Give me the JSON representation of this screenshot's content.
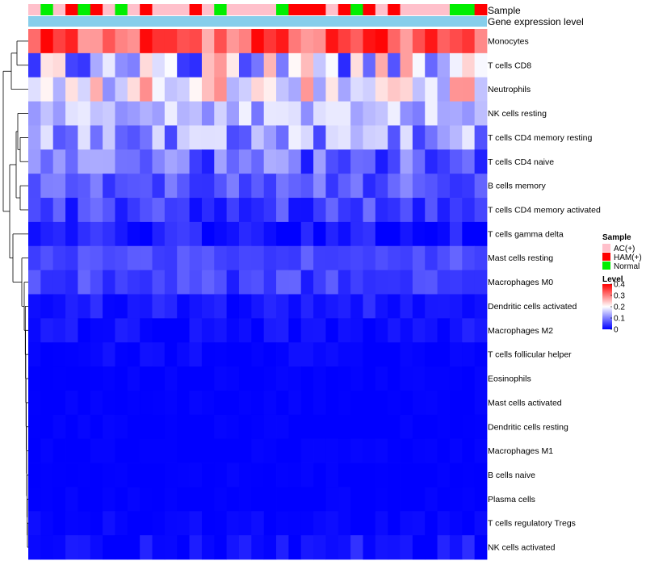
{
  "chart_data": {
    "type": "heatmap",
    "title": "",
    "annotations": {
      "sample_label": "Sample",
      "gene_label": "Gene expression level",
      "gene_color": "#87CEEB"
    },
    "sample_groups": [
      "AC",
      "N",
      "AC",
      "H",
      "N",
      "H",
      "AC",
      "N",
      "AC",
      "H",
      "AC",
      "AC",
      "AC",
      "H",
      "AC",
      "N",
      "AC",
      "AC",
      "AC",
      "AC",
      "N",
      "H",
      "H",
      "H",
      "AC",
      "H",
      "N",
      "H",
      "AC",
      "H",
      "AC",
      "AC",
      "AC",
      "AC",
      "N",
      "N",
      "H"
    ],
    "rows": [
      "Monocytes",
      "T cells CD8",
      "Neutrophils",
      "NK cells resting",
      "T cells CD4 memory resting",
      "T cells CD4 naive",
      "B cells memory",
      "T cells CD4 memory activated",
      "T cells gamma delta",
      "Mast cells resting",
      "Macrophages M0",
      "Dendritic cells activated",
      "Macrophages M2",
      "T cells follicular helper",
      "Eosinophils",
      "Mast cells activated",
      "Dendritic cells resting",
      "Macrophages M1",
      "B cells naive",
      "Plasma cells",
      "T cells regulatory  Tregs",
      "NK cells activated"
    ],
    "row_profiles": [
      {
        "base": 0.33,
        "var": 0.07
      },
      {
        "base": 0.16,
        "var": 0.13
      },
      {
        "base": 0.2,
        "var": 0.09
      },
      {
        "base": 0.14,
        "var": 0.05
      },
      {
        "base": 0.12,
        "var": 0.07
      },
      {
        "base": 0.08,
        "var": 0.06
      },
      {
        "base": 0.07,
        "var": 0.04
      },
      {
        "base": 0.05,
        "var": 0.04
      },
      {
        "base": 0.01,
        "var": 0.04
      },
      {
        "base": 0.06,
        "var": 0.02
      },
      {
        "base": 0.05,
        "var": 0.03
      },
      {
        "base": 0.02,
        "var": 0.02
      },
      {
        "base": 0.01,
        "var": 0.02
      },
      {
        "base": 0.005,
        "var": 0.01
      },
      {
        "base": 0.0,
        "var": 0.005
      },
      {
        "base": 0.0,
        "var": 0.005
      },
      {
        "base": 0.0,
        "var": 0.005
      },
      {
        "base": 0.0,
        "var": 0.005
      },
      {
        "base": 0.0,
        "var": 0.005
      },
      {
        "base": 0.0,
        "var": 0.005
      },
      {
        "base": 0.003,
        "var": 0.01
      },
      {
        "base": 0.01,
        "var": 0.03
      }
    ],
    "legend": {
      "sample_title": "Sample",
      "sample_items": [
        {
          "key": "AC",
          "label": "AC(+)",
          "color": "#FFC0CB"
        },
        {
          "key": "H",
          "label": "HAM(+)",
          "color": "#FF0000"
        },
        {
          "key": "N",
          "label": "Normal",
          "color": "#00EE00"
        }
      ],
      "level_title": "Level",
      "level_ticks": [
        "0.4",
        "0.3",
        "0.2",
        "0.1",
        "0"
      ],
      "level_values": [
        0.4,
        0.3,
        0.2,
        0.1,
        0
      ],
      "color_low": "#0000FF",
      "color_mid": "#FFFFFF",
      "color_high": "#FF0000",
      "level_min": 0,
      "level_max": 0.4
    }
  }
}
